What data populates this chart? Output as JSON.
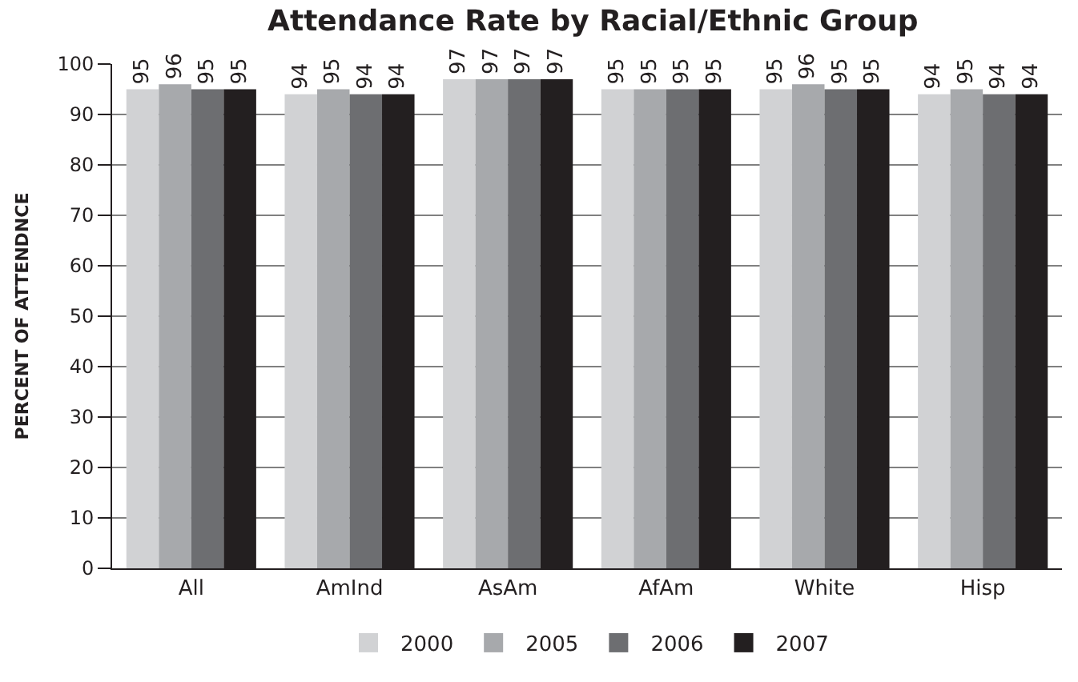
{
  "chart_data": {
    "type": "bar",
    "title": "Attendance Rate by Racial/Ethnic Group",
    "ylabel": "PERCENT OF ATTENDNCE",
    "categories": [
      "All",
      "AmInd",
      "AsAm",
      "AfAm",
      "White",
      "Hisp"
    ],
    "series": [
      {
        "name": "2000",
        "color": "#d1d2d4",
        "values": [
          95,
          94,
          97,
          95,
          95,
          94
        ]
      },
      {
        "name": "2005",
        "color": "#a7a9ac",
        "values": [
          96,
          95,
          97,
          95,
          96,
          95
        ]
      },
      {
        "name": "2006",
        "color": "#6d6e71",
        "values": [
          95,
          94,
          97,
          95,
          95,
          94
        ]
      },
      {
        "name": "2007",
        "color": "#231f20",
        "values": [
          95,
          94,
          97,
          95,
          95,
          94
        ]
      }
    ],
    "ylim": [
      0,
      100
    ],
    "yticks": [
      0,
      10,
      20,
      30,
      40,
      50,
      60,
      70,
      80,
      90,
      100
    ],
    "grid": "y",
    "legend": "bottom",
    "data_labels": true
  }
}
